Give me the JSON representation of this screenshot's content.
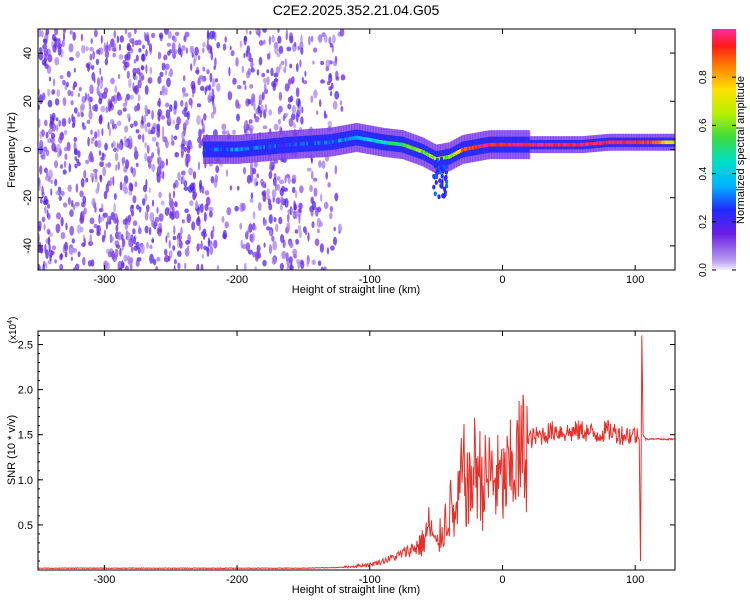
{
  "title": "C2E2.2025.352.21.04.G05",
  "chart_data": [
    {
      "type": "heatmap",
      "xlabel": "Height of straight line (km)",
      "ylabel": "Frequency (Hz)",
      "xlim": [
        -350,
        130
      ],
      "ylim": [
        -50,
        50
      ],
      "xticks": [
        -300,
        -200,
        -100,
        0,
        100
      ],
      "yticks": [
        -40,
        -20,
        0,
        20,
        40
      ],
      "colorbar": {
        "label": "Normalized spectral amplitude",
        "range": [
          0.0,
          1.0
        ],
        "ticks": [
          0.0,
          0.2,
          0.4,
          0.6,
          0.8
        ]
      },
      "ridge": {
        "x": [
          -225,
          -200,
          -160,
          -130,
          -110,
          -90,
          -75,
          -60,
          -50,
          -40,
          -30,
          -20,
          -10,
          0,
          20,
          40,
          60,
          80,
          100,
          110,
          130
        ],
        "freq": [
          0,
          0,
          2,
          3,
          5,
          3,
          2,
          -1,
          -4,
          -3,
          0,
          1,
          2,
          2,
          2,
          2,
          2,
          3,
          3,
          3,
          3
        ],
        "amplitude": [
          0.25,
          0.3,
          0.25,
          0.3,
          0.35,
          0.45,
          0.55,
          0.6,
          0.65,
          0.6,
          0.85,
          0.95,
          0.95,
          0.95,
          0.97,
          0.97,
          0.97,
          0.97,
          0.95,
          0.9,
          0.7
        ]
      },
      "noise_region_x": [
        -350,
        -120
      ]
    },
    {
      "type": "line",
      "xlabel": "Height of straight line (km)",
      "ylabel": "SNR (10 * v/v)",
      "scale_label": "(x10",
      "scale_exp": "4",
      "scale_close": ")",
      "xlim": [
        -350,
        130
      ],
      "ylim": [
        0,
        2.65
      ],
      "xticks": [
        -300,
        -200,
        -100,
        0,
        100
      ],
      "yticks": [
        0.5,
        1.0,
        1.5,
        2.0,
        2.5
      ],
      "ytick_labels": [
        "0.5",
        "1.0",
        "1.5",
        "2.0",
        "2.5"
      ],
      "color": "#e8302a",
      "series": [
        {
          "name": "SNR",
          "x": [
            -350,
            -300,
            -250,
            -200,
            -150,
            -120,
            -100,
            -90,
            -80,
            -70,
            -60,
            -55,
            -50,
            -45,
            -40,
            -35,
            -30,
            -25,
            -20,
            -15,
            -10,
            -5,
            0,
            5,
            10,
            15,
            20,
            30,
            40,
            50,
            60,
            70,
            80,
            90,
            100,
            103,
            104,
            105,
            106,
            108,
            110,
            120,
            130
          ],
          "y": [
            0.02,
            0.02,
            0.02,
            0.02,
            0.02,
            0.03,
            0.06,
            0.1,
            0.15,
            0.22,
            0.3,
            0.5,
            0.25,
            0.45,
            0.7,
            0.55,
            1.1,
            0.85,
            1.2,
            0.95,
            1.05,
            1.0,
            0.95,
            1.05,
            1.2,
            1.3,
            1.45,
            1.5,
            1.55,
            1.52,
            1.55,
            1.5,
            1.55,
            1.5,
            1.5,
            1.45,
            0.1,
            2.6,
            1.5,
            1.45,
            1.45,
            1.45,
            1.45
          ]
        }
      ]
    }
  ]
}
